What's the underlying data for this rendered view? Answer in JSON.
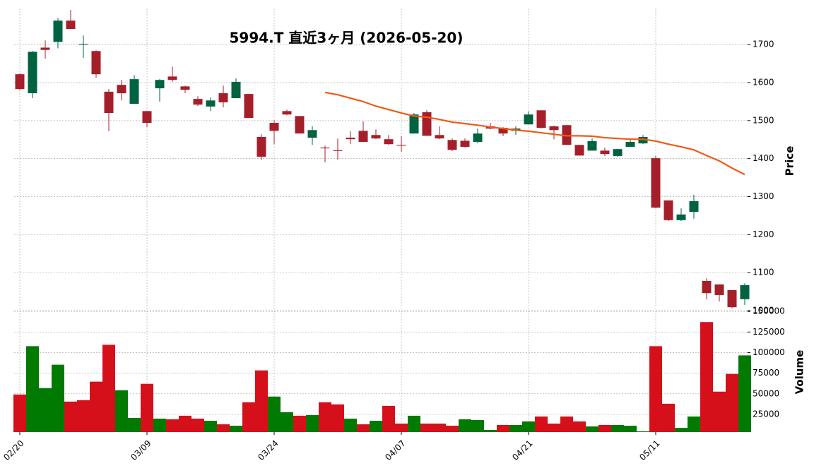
{
  "chart_data": {
    "type": "candlestick",
    "title": "5994.T  直近3ヶ月  (2026-05-20)",
    "categories": [
      "02/20",
      null,
      null,
      null,
      null,
      null,
      null,
      null,
      null,
      null,
      "03/09",
      null,
      null,
      null,
      null,
      null,
      null,
      null,
      null,
      null,
      "03/24",
      null,
      null,
      null,
      null,
      null,
      null,
      null,
      null,
      null,
      "04/07",
      null,
      null,
      null,
      null,
      null,
      null,
      null,
      null,
      null,
      "04/21",
      null,
      null,
      null,
      null,
      null,
      null,
      null,
      null,
      null,
      "05/11",
      null,
      null,
      null,
      null,
      null,
      null,
      null
    ],
    "open": [
      1622,
      1572,
      1692,
      1707,
      1763,
      1700,
      1683,
      1576,
      1594,
      1544,
      1525,
      1585,
      1616,
      1590,
      1557,
      1537,
      1572,
      1559,
      1570,
      1457,
      1494,
      1525,
      1512,
      1455,
      1429,
      1422,
      1455,
      1473,
      1462,
      1451,
      1436,
      1466,
      1522,
      1462,
      1449,
      1447,
      1444,
      1485,
      1481,
      1473,
      1490,
      1527,
      1485,
      1488,
      1436,
      1421,
      1421,
      1407,
      1431,
      1440,
      1401,
      1290,
      1238,
      1260,
      1078,
      1069,
      1054,
      1030
    ],
    "high": [
      1625,
      1683,
      1711,
      1770,
      1791,
      1724,
      1685,
      1583,
      1607,
      1620,
      1525,
      1609,
      1642,
      1592,
      1564,
      1561,
      1592,
      1611,
      1570,
      1464,
      1501,
      1529,
      1512,
      1485,
      1434,
      1453,
      1472,
      1498,
      1477,
      1462,
      1459,
      1520,
      1527,
      1485,
      1453,
      1453,
      1479,
      1494,
      1483,
      1485,
      1524,
      1527,
      1487,
      1488,
      1436,
      1453,
      1429,
      1425,
      1449,
      1462,
      1407,
      1290,
      1269,
      1305,
      1085,
      1069,
      1054,
      1072
    ],
    "low": [
      1580,
      1559,
      1663,
      1690,
      1741,
      1665,
      1613,
      1472,
      1553,
      1544,
      1483,
      1550,
      1602,
      1572,
      1538,
      1525,
      1535,
      1559,
      1507,
      1397,
      1438,
      1514,
      1466,
      1436,
      1390,
      1397,
      1438,
      1444,
      1451,
      1436,
      1418,
      1466,
      1460,
      1451,
      1420,
      1429,
      1440,
      1477,
      1459,
      1462,
      1490,
      1479,
      1451,
      1436,
      1408,
      1421,
      1407,
      1405,
      1431,
      1438,
      1269,
      1236,
      1236,
      1242,
      1030,
      1024,
      1006,
      1015
    ],
    "close": [
      1583,
      1681,
      1686,
      1763,
      1741,
      1702,
      1622,
      1520,
      1572,
      1609,
      1494,
      1607,
      1607,
      1581,
      1542,
      1553,
      1548,
      1602,
      1507,
      1405,
      1473,
      1516,
      1466,
      1475,
      1427,
      1420,
      1451,
      1444,
      1453,
      1438,
      1434,
      1516,
      1460,
      1453,
      1423,
      1431,
      1466,
      1479,
      1466,
      1479,
      1516,
      1481,
      1475,
      1436,
      1408,
      1446,
      1412,
      1425,
      1444,
      1457,
      1271,
      1238,
      1253,
      1288,
      1046,
      1041,
      1009,
      1067
    ],
    "volume": [
      49100,
      107800,
      56900,
      85300,
      40500,
      42200,
      64700,
      109500,
      54300,
      20700,
      62100,
      19800,
      19000,
      23300,
      19800,
      17200,
      12900,
      11200,
      39700,
      78400,
      46600,
      27600,
      23300,
      24100,
      39700,
      37100,
      19800,
      12900,
      17200,
      35300,
      13800,
      23300,
      13800,
      13800,
      11200,
      19000,
      18100,
      6000,
      12100,
      12100,
      16400,
      22400,
      13800,
      22400,
      16400,
      10300,
      12100,
      12100,
      11200,
      4300,
      107800,
      37900,
      8600,
      22400,
      137100,
      52600,
      74100,
      96600
    ],
    "ma": {
      "color": "#f05a14",
      "values": [
        null,
        null,
        null,
        null,
        null,
        null,
        null,
        null,
        null,
        null,
        null,
        null,
        null,
        null,
        null,
        null,
        null,
        null,
        null,
        null,
        null,
        null,
        null,
        null,
        1574,
        1568,
        1559,
        1550,
        1538,
        1529,
        1520,
        1512,
        1509,
        1503,
        1496,
        1492,
        1488,
        1483,
        1479,
        1475,
        1472,
        1468,
        1464,
        1460,
        1460,
        1459,
        1455,
        1453,
        1451,
        1451,
        1446,
        1438,
        1431,
        1423,
        1408,
        1394,
        1375,
        1358
      ]
    },
    "up_color": "#006340",
    "down_color": "#a51f2a",
    "volume_up_color": "#007a00",
    "volume_down_color": "#d5101a",
    "ylabel": "Price",
    "ylim": [
      1000,
      1795
    ],
    "yticks": [
      1000,
      1100,
      1200,
      1300,
      1400,
      1500,
      1600,
      1700
    ],
    "volume_ylabel": "Volume",
    "volume_ylim": [
      3500,
      151000
    ],
    "volume_yticks": [
      25000,
      50000,
      75000,
      100000,
      125000,
      150000
    ],
    "grid": true
  }
}
